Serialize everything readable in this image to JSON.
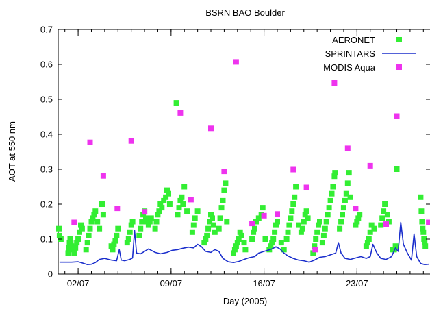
{
  "chart_data": {
    "type": "scatter",
    "title": "BSRN BAO Boulder",
    "xlabel": "Day (2005)",
    "ylabel": "AOT at 550 nm",
    "x_unit": "day of July 2005",
    "xlim": [
      0.5,
      28.5
    ],
    "ylim": [
      0,
      0.7
    ],
    "x_ticks": [
      {
        "value": 2,
        "label": "02/07"
      },
      {
        "value": 9,
        "label": "09/07"
      },
      {
        "value": 16,
        "label": "16/07"
      },
      {
        "value": 23,
        "label": "23/07"
      }
    ],
    "y_ticks": [
      {
        "value": 0,
        "label": "0"
      },
      {
        "value": 0.1,
        "label": "0.1"
      },
      {
        "value": 0.2,
        "label": "0.2"
      },
      {
        "value": 0.3,
        "label": "0.3"
      },
      {
        "value": 0.4,
        "label": "0.4"
      },
      {
        "value": 0.5,
        "label": "0.5"
      },
      {
        "value": 0.6,
        "label": "0.6"
      },
      {
        "value": 0.7,
        "label": "0.7"
      }
    ],
    "grid": false,
    "legend_position": "top-right",
    "series": [
      {
        "name": "AERONET",
        "kind": "points",
        "marker": "square",
        "color": "#33ee33",
        "points": [
          [
            0.55,
            0.13
          ],
          [
            0.6,
            0.11
          ],
          [
            0.7,
            0.1
          ],
          [
            1.25,
            0.06
          ],
          [
            1.3,
            0.075
          ],
          [
            1.35,
            0.09
          ],
          [
            1.4,
            0.1
          ],
          [
            1.45,
            0.09
          ],
          [
            1.5,
            0.08
          ],
          [
            1.6,
            0.07
          ],
          [
            1.7,
            0.06
          ],
          [
            1.8,
            0.075
          ],
          [
            1.9,
            0.09
          ],
          [
            2.0,
            0.1
          ],
          [
            2.1,
            0.12
          ],
          [
            2.2,
            0.14
          ],
          [
            2.3,
            0.13
          ],
          [
            2.6,
            0.07
          ],
          [
            2.7,
            0.09
          ],
          [
            2.8,
            0.11
          ],
          [
            2.9,
            0.13
          ],
          [
            3.0,
            0.15
          ],
          [
            3.1,
            0.16
          ],
          [
            3.2,
            0.17
          ],
          [
            3.3,
            0.18
          ],
          [
            3.45,
            0.15
          ],
          [
            3.6,
            0.13
          ],
          [
            3.8,
            0.2
          ],
          [
            3.9,
            0.17
          ],
          [
            4.5,
            0.08
          ],
          [
            4.6,
            0.07
          ],
          [
            4.7,
            0.085
          ],
          [
            4.8,
            0.095
          ],
          [
            4.9,
            0.11
          ],
          [
            5.0,
            0.13
          ],
          [
            5.7,
            0.09
          ],
          [
            5.8,
            0.1
          ],
          [
            5.9,
            0.12
          ],
          [
            6.0,
            0.14
          ],
          [
            6.1,
            0.15
          ],
          [
            6.6,
            0.11
          ],
          [
            6.7,
            0.13
          ],
          [
            6.8,
            0.15
          ],
          [
            6.9,
            0.17
          ],
          [
            7.0,
            0.18
          ],
          [
            7.1,
            0.16
          ],
          [
            7.2,
            0.15
          ],
          [
            7.3,
            0.14
          ],
          [
            7.4,
            0.15
          ],
          [
            7.5,
            0.16
          ],
          [
            7.8,
            0.13
          ],
          [
            7.9,
            0.15
          ],
          [
            8.0,
            0.17
          ],
          [
            8.1,
            0.18
          ],
          [
            8.2,
            0.2
          ],
          [
            8.3,
            0.19
          ],
          [
            8.45,
            0.21
          ],
          [
            8.6,
            0.22
          ],
          [
            8.7,
            0.24
          ],
          [
            8.8,
            0.23
          ],
          [
            8.9,
            0.2
          ],
          [
            9.4,
            0.49
          ],
          [
            9.5,
            0.17
          ],
          [
            9.6,
            0.19
          ],
          [
            9.7,
            0.21
          ],
          [
            9.8,
            0.22
          ],
          [
            9.9,
            0.2
          ],
          [
            10.0,
            0.25
          ],
          [
            10.2,
            0.18
          ],
          [
            10.6,
            0.12
          ],
          [
            10.7,
            0.14
          ],
          [
            10.8,
            0.16
          ],
          [
            11.0,
            0.18
          ],
          [
            11.5,
            0.09
          ],
          [
            11.6,
            0.1
          ],
          [
            11.7,
            0.11
          ],
          [
            11.8,
            0.13
          ],
          [
            11.9,
            0.15
          ],
          [
            12.0,
            0.17
          ],
          [
            12.1,
            0.16
          ],
          [
            12.2,
            0.14
          ],
          [
            12.3,
            0.12
          ],
          [
            12.6,
            0.13
          ],
          [
            12.7,
            0.16
          ],
          [
            12.8,
            0.19
          ],
          [
            12.9,
            0.21
          ],
          [
            13.0,
            0.24
          ],
          [
            13.1,
            0.26
          ],
          [
            13.2,
            0.15
          ],
          [
            13.7,
            0.06
          ],
          [
            13.8,
            0.07
          ],
          [
            13.9,
            0.08
          ],
          [
            14.0,
            0.09
          ],
          [
            14.1,
            0.1
          ],
          [
            14.2,
            0.12
          ],
          [
            14.3,
            0.11
          ],
          [
            14.5,
            0.09
          ],
          [
            14.6,
            0.07
          ],
          [
            15.1,
            0.1
          ],
          [
            15.2,
            0.12
          ],
          [
            15.3,
            0.13
          ],
          [
            15.4,
            0.15
          ],
          [
            15.6,
            0.16
          ],
          [
            15.8,
            0.17
          ],
          [
            15.9,
            0.19
          ],
          [
            16.1,
            0.1
          ],
          [
            16.4,
            0.07
          ],
          [
            16.5,
            0.08
          ],
          [
            16.6,
            0.09
          ],
          [
            16.7,
            0.1
          ],
          [
            16.8,
            0.12
          ],
          [
            16.9,
            0.14
          ],
          [
            17.0,
            0.15
          ],
          [
            17.3,
            0.09
          ],
          [
            17.5,
            0.07
          ],
          [
            17.7,
            0.1
          ],
          [
            17.8,
            0.12
          ],
          [
            17.9,
            0.14
          ],
          [
            18.0,
            0.16
          ],
          [
            18.1,
            0.18
          ],
          [
            18.2,
            0.2
          ],
          [
            18.3,
            0.22
          ],
          [
            18.4,
            0.25
          ],
          [
            18.6,
            0.14
          ],
          [
            18.8,
            0.12
          ],
          [
            18.9,
            0.13
          ],
          [
            19.0,
            0.15
          ],
          [
            19.1,
            0.17
          ],
          [
            19.2,
            0.18
          ],
          [
            19.3,
            0.16
          ],
          [
            19.7,
            0.06
          ],
          [
            19.8,
            0.08
          ],
          [
            19.9,
            0.1
          ],
          [
            20.0,
            0.12
          ],
          [
            20.1,
            0.14
          ],
          [
            20.2,
            0.15
          ],
          [
            20.4,
            0.09
          ],
          [
            20.5,
            0.11
          ],
          [
            20.6,
            0.13
          ],
          [
            20.7,
            0.15
          ],
          [
            20.8,
            0.17
          ],
          [
            20.9,
            0.19
          ],
          [
            21.0,
            0.21
          ],
          [
            21.1,
            0.23
          ],
          [
            21.2,
            0.25
          ],
          [
            21.3,
            0.28
          ],
          [
            21.35,
            0.29
          ],
          [
            21.7,
            0.13
          ],
          [
            21.8,
            0.15
          ],
          [
            21.9,
            0.17
          ],
          [
            22.0,
            0.19
          ],
          [
            22.1,
            0.21
          ],
          [
            22.2,
            0.23
          ],
          [
            22.3,
            0.26
          ],
          [
            22.4,
            0.29
          ],
          [
            22.5,
            0.22
          ],
          [
            22.9,
            0.14
          ],
          [
            23.0,
            0.15
          ],
          [
            23.1,
            0.16
          ],
          [
            23.2,
            0.17
          ],
          [
            23.7,
            0.08
          ],
          [
            23.8,
            0.09
          ],
          [
            23.9,
            0.1
          ],
          [
            24.0,
            0.12
          ],
          [
            24.1,
            0.14
          ],
          [
            24.3,
            0.13
          ],
          [
            24.8,
            0.14
          ],
          [
            24.9,
            0.16
          ],
          [
            25.0,
            0.18
          ],
          [
            25.1,
            0.2
          ],
          [
            25.3,
            0.17
          ],
          [
            25.4,
            0.15
          ],
          [
            25.7,
            0.07
          ],
          [
            25.8,
            0.07
          ],
          [
            25.9,
            0.08
          ],
          [
            26.0,
            0.3
          ],
          [
            27.8,
            0.22
          ],
          [
            27.85,
            0.18
          ],
          [
            27.9,
            0.15
          ],
          [
            27.95,
            0.13
          ],
          [
            28.0,
            0.12
          ],
          [
            28.05,
            0.1
          ],
          [
            28.1,
            0.09
          ],
          [
            28.15,
            0.08
          ]
        ]
      },
      {
        "name": "SPRINTARS",
        "kind": "line",
        "color": "#1a2ecc",
        "points": [
          [
            0.6,
            0.034
          ],
          [
            1.0,
            0.034
          ],
          [
            1.5,
            0.034
          ],
          [
            2.0,
            0.035
          ],
          [
            2.3,
            0.032
          ],
          [
            2.7,
            0.027
          ],
          [
            3.0,
            0.028
          ],
          [
            3.3,
            0.033
          ],
          [
            3.6,
            0.042
          ],
          [
            4.0,
            0.045
          ],
          [
            4.5,
            0.04
          ],
          [
            4.9,
            0.038
          ],
          [
            5.1,
            0.07
          ],
          [
            5.25,
            0.04
          ],
          [
            5.5,
            0.038
          ],
          [
            5.9,
            0.042
          ],
          [
            6.1,
            0.046
          ],
          [
            6.25,
            0.125
          ],
          [
            6.4,
            0.06
          ],
          [
            6.7,
            0.058
          ],
          [
            7.0,
            0.065
          ],
          [
            7.3,
            0.072
          ],
          [
            7.5,
            0.068
          ],
          [
            7.8,
            0.062
          ],
          [
            8.2,
            0.058
          ],
          [
            8.7,
            0.062
          ],
          [
            9.1,
            0.068
          ],
          [
            9.5,
            0.07
          ],
          [
            9.9,
            0.074
          ],
          [
            10.3,
            0.077
          ],
          [
            10.7,
            0.075
          ],
          [
            11.0,
            0.085
          ],
          [
            11.3,
            0.078
          ],
          [
            11.6,
            0.065
          ],
          [
            12.0,
            0.062
          ],
          [
            12.3,
            0.07
          ],
          [
            12.6,
            0.065
          ],
          [
            12.9,
            0.045
          ],
          [
            13.3,
            0.035
          ],
          [
            13.7,
            0.033
          ],
          [
            14.1,
            0.036
          ],
          [
            14.5,
            0.042
          ],
          [
            14.9,
            0.047
          ],
          [
            15.3,
            0.05
          ],
          [
            15.6,
            0.06
          ],
          [
            16.0,
            0.065
          ],
          [
            16.3,
            0.068
          ],
          [
            16.6,
            0.072
          ],
          [
            16.9,
            0.078
          ],
          [
            17.2,
            0.072
          ],
          [
            17.5,
            0.06
          ],
          [
            17.8,
            0.052
          ],
          [
            18.2,
            0.045
          ],
          [
            18.6,
            0.04
          ],
          [
            19.0,
            0.038
          ],
          [
            19.4,
            0.034
          ],
          [
            19.8,
            0.04
          ],
          [
            20.2,
            0.048
          ],
          [
            20.6,
            0.05
          ],
          [
            21.0,
            0.055
          ],
          [
            21.4,
            0.06
          ],
          [
            21.6,
            0.09
          ],
          [
            21.8,
            0.06
          ],
          [
            22.1,
            0.045
          ],
          [
            22.5,
            0.042
          ],
          [
            22.9,
            0.046
          ],
          [
            23.3,
            0.05
          ],
          [
            23.7,
            0.045
          ],
          [
            24.0,
            0.05
          ],
          [
            24.2,
            0.085
          ],
          [
            24.5,
            0.06
          ],
          [
            24.8,
            0.045
          ],
          [
            25.2,
            0.042
          ],
          [
            25.6,
            0.05
          ],
          [
            25.9,
            0.075
          ],
          [
            26.1,
            0.065
          ],
          [
            26.3,
            0.148
          ],
          [
            26.5,
            0.085
          ],
          [
            26.8,
            0.06
          ],
          [
            27.1,
            0.04
          ],
          [
            27.3,
            0.115
          ],
          [
            27.5,
            0.05
          ],
          [
            27.8,
            0.03
          ],
          [
            28.1,
            0.027
          ],
          [
            28.4,
            0.028
          ]
        ]
      },
      {
        "name": "MODIS Aqua",
        "kind": "points",
        "marker": "square",
        "color": "#ee33ee",
        "points": [
          [
            1.7,
            0.148
          ],
          [
            2.9,
            0.377
          ],
          [
            3.9,
            0.281
          ],
          [
            4.95,
            0.188
          ],
          [
            6.0,
            0.381
          ],
          [
            7.0,
            0.178
          ],
          [
            9.7,
            0.461
          ],
          [
            10.5,
            0.213
          ],
          [
            12.0,
            0.417
          ],
          [
            13.0,
            0.294
          ],
          [
            13.9,
            0.607
          ],
          [
            15.1,
            0.145
          ],
          [
            16.0,
            0.167
          ],
          [
            17.0,
            0.172
          ],
          [
            18.2,
            0.299
          ],
          [
            19.2,
            0.248
          ],
          [
            19.85,
            0.07
          ],
          [
            21.3,
            0.547
          ],
          [
            22.3,
            0.36
          ],
          [
            22.9,
            0.188
          ],
          [
            24.0,
            0.31
          ],
          [
            25.2,
            0.143
          ],
          [
            26.0,
            0.452
          ],
          [
            28.4,
            0.148
          ]
        ]
      }
    ]
  }
}
